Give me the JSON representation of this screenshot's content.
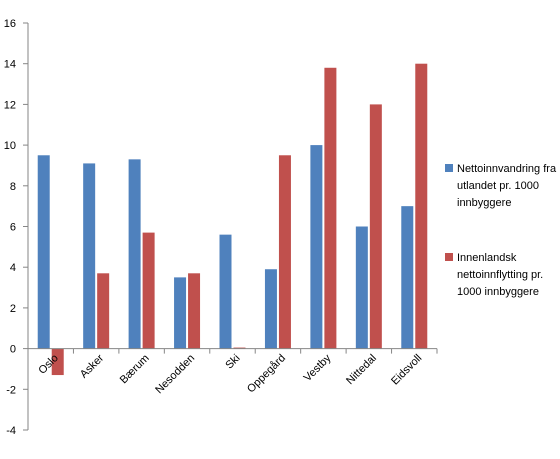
{
  "chart_data": {
    "type": "bar",
    "categories": [
      "Oslo",
      "Asker",
      "Bærum",
      "Nesodden",
      "Ski",
      "Oppegård",
      "Vestby",
      "Nittedal",
      "Eidsvoll"
    ],
    "series": [
      {
        "name": "Nettoinnvandring fra utlandet pr. 1000 innbyggere",
        "color": "#4f81bd",
        "values": [
          9.5,
          9.1,
          9.3,
          3.5,
          5.6,
          3.9,
          10.0,
          6.0,
          7.0
        ]
      },
      {
        "name": "Innenlandsk nettoinnflytting pr. 1000 innbyggere",
        "color": "#c0504d",
        "values": [
          -1.3,
          3.7,
          5.7,
          3.7,
          0.05,
          9.5,
          13.8,
          12.0,
          14.0
        ]
      }
    ],
    "yticks": [
      "16",
      "14",
      "12",
      "10",
      "8",
      "6",
      "4",
      "2",
      "0",
      "-2",
      "-4"
    ],
    "ylim": [
      -4,
      16
    ],
    "legend_position": "right",
    "grid": false
  }
}
